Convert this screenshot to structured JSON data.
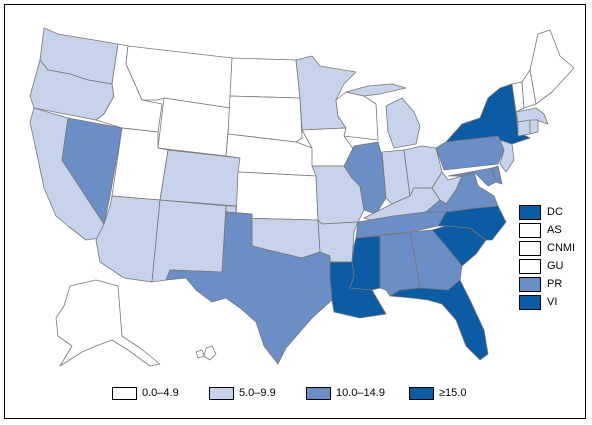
{
  "colors": {
    "class_0": "#ffffff",
    "class_1": "#c7d3ea",
    "class_2": "#6b8ec7",
    "class_3": "#0b5ca5",
    "border": "#000000"
  },
  "legend": [
    {
      "label": "0.0–4.9",
      "class": 0
    },
    {
      "label": "5.0–9.9",
      "class": 1
    },
    {
      "label": "10.0–14.9",
      "class": 2
    },
    {
      "label": "≥15.0",
      "class": 3
    }
  ],
  "territories": [
    {
      "label": "DC",
      "class": 3
    },
    {
      "label": "AS",
      "class": 0
    },
    {
      "label": "CNMI",
      "class": 0
    },
    {
      "label": "GU",
      "class": 0
    },
    {
      "label": "PR",
      "class": 2
    },
    {
      "label": "VI",
      "class": 3
    }
  ],
  "states": {
    "AL": 2,
    "AK": 0,
    "AZ": 1,
    "AR": 1,
    "CA": 1,
    "CO": 1,
    "CT": 1,
    "DE": 2,
    "FL": 3,
    "GA": 2,
    "HI": 0,
    "ID": 0,
    "IL": 2,
    "IN": 1,
    "IA": 0,
    "KS": 0,
    "KY": 1,
    "LA": 3,
    "ME": 0,
    "MD": 2,
    "MA": 1,
    "MI": 1,
    "MN": 1,
    "MS": 3,
    "MO": 1,
    "MT": 0,
    "NE": 0,
    "NV": 2,
    "NH": 0,
    "NJ": 1,
    "NM": 1,
    "NY": 3,
    "NC": 3,
    "ND": 0,
    "OH": 1,
    "OK": 1,
    "OR": 1,
    "PA": 2,
    "RI": 1,
    "SC": 3,
    "SD": 0,
    "TN": 2,
    "TX": 2,
    "UT": 0,
    "VT": 0,
    "VA": 2,
    "WA": 1,
    "WV": 1,
    "WI": 0,
    "WY": 0
  }
}
